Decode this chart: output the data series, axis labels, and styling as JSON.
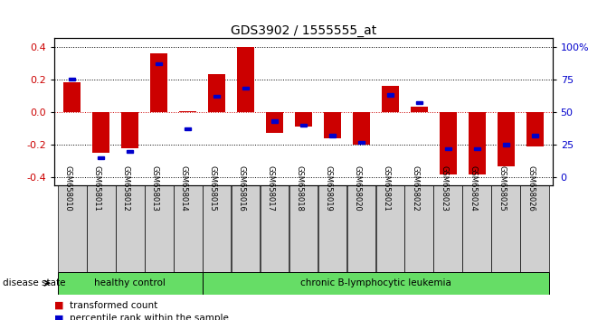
{
  "title": "GDS3902 / 1555555_at",
  "samples": [
    "GSM658010",
    "GSM658011",
    "GSM658012",
    "GSM658013",
    "GSM658014",
    "GSM658015",
    "GSM658016",
    "GSM658017",
    "GSM658018",
    "GSM658019",
    "GSM658020",
    "GSM658021",
    "GSM658022",
    "GSM658023",
    "GSM658024",
    "GSM658025",
    "GSM658026"
  ],
  "red_values": [
    0.18,
    -0.25,
    -0.22,
    0.36,
    0.005,
    0.23,
    0.4,
    -0.13,
    -0.09,
    -0.16,
    -0.2,
    0.16,
    0.03,
    -0.38,
    -0.38,
    -0.33,
    -0.21
  ],
  "blue_percentile": [
    75,
    15,
    20,
    87,
    37,
    62,
    68,
    43,
    40,
    32,
    27,
    63,
    57,
    22,
    22,
    25,
    32
  ],
  "healthy_count": 5,
  "group_labels": [
    "healthy control",
    "chronic B-lymphocytic leukemia"
  ],
  "disease_state_label": "disease state",
  "legend_red": "transformed count",
  "legend_blue": "percentile rank within the sample",
  "ylim": [
    -0.45,
    0.45
  ],
  "yticks": [
    -0.4,
    -0.2,
    0.0,
    0.2,
    0.4
  ],
  "right_yticks": [
    0,
    25,
    50,
    75,
    100
  ],
  "red_color": "#CC0000",
  "blue_color": "#0000CC",
  "bar_width": 0.6,
  "green_color": "#66DD66"
}
